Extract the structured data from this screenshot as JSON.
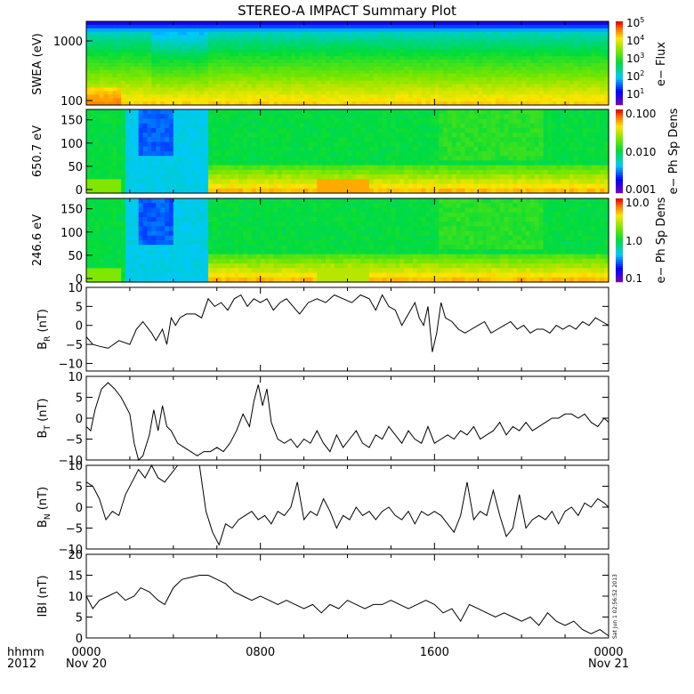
{
  "title": "STEREO-A IMPACT Summary Plot",
  "stamp": "Sat Jun 1 02:56:52 2013",
  "colors": {
    "line": "#000000",
    "frame": "#000000"
  },
  "x_axis": {
    "left_labels": [
      "hhmm",
      "2012"
    ],
    "ticks": [
      {
        "t": 0,
        "label": "0000",
        "sub": "Nov 20"
      },
      {
        "t": 8,
        "label": "0800",
        "sub": ""
      },
      {
        "t": 16,
        "label": "1600",
        "sub": ""
      },
      {
        "t": 24,
        "label": "0000",
        "sub": "Nov 21"
      }
    ],
    "range_hours": [
      0,
      24
    ]
  },
  "panels": {
    "swea": {
      "ylabel": "SWEA (eV)",
      "yticks": [
        "1000",
        "100"
      ],
      "colorbar_label": "e− Flux",
      "colorbar_ticks": [
        {
          "base": "10",
          "exp": "5"
        },
        {
          "base": "10",
          "exp": "4"
        },
        {
          "base": "10",
          "exp": "3"
        },
        {
          "base": "10",
          "exp": "2"
        },
        {
          "base": "10",
          "exp": "1"
        }
      ]
    },
    "pad1": {
      "ylabel": "650.7 eV",
      "yticks": [
        "150",
        "100",
        "50",
        "0"
      ],
      "colorbar_label": "e− Ph Sp Dens",
      "colorbar_ticks": [
        "0.100",
        "0.010",
        "0.001"
      ]
    },
    "pad2": {
      "ylabel": "246.6 eV",
      "yticks": [
        "150",
        "100",
        "50",
        "0"
      ],
      "colorbar_label": "e− Ph Sp Dens",
      "colorbar_ticks": [
        "10.0",
        "1.0",
        "0.1"
      ]
    },
    "br": {
      "ylabel_main": "B",
      "ylabel_sub": "R",
      "ylabel_unit": " (nT)",
      "yticks": [
        "10",
        "5",
        "0",
        "−5",
        "−10"
      ]
    },
    "bt": {
      "ylabel_main": "B",
      "ylabel_sub": "T",
      "ylabel_unit": " (nT)",
      "yticks": [
        "10",
        "5",
        "0",
        "−5",
        "−10"
      ]
    },
    "bn": {
      "ylabel_main": "B",
      "ylabel_sub": "N",
      "ylabel_unit": " (nT)",
      "yticks": [
        "10",
        "5",
        "0",
        "−5",
        "−10"
      ]
    },
    "bmag": {
      "ylabel": "IBI (nT)",
      "yticks": [
        "20",
        "15",
        "10",
        "5",
        "0"
      ]
    }
  },
  "chart_data": [
    {
      "type": "heatmap",
      "name": "SWEA",
      "ylabel": "SWEA (eV)",
      "colorbar": "e− Flux",
      "colorbar_range": [
        10,
        100000
      ],
      "yscale": "log",
      "ylim": [
        90,
        2000
      ]
    },
    {
      "type": "heatmap",
      "name": "650.7 eV",
      "ylabel": "650.7 eV",
      "colorbar": "e− Ph Sp Dens",
      "colorbar_range": [
        0.001,
        0.1
      ],
      "ylim": [
        0,
        180
      ]
    },
    {
      "type": "heatmap",
      "name": "246.6 eV",
      "ylabel": "246.6 eV",
      "colorbar": "e− Ph Sp Dens",
      "colorbar_range": [
        0.1,
        10
      ],
      "ylim": [
        0,
        180
      ]
    },
    {
      "type": "line",
      "ylabel": "BR (nT)",
      "ylim": [
        -12,
        10
      ],
      "x": [
        0,
        0.3,
        0.6,
        1,
        1.5,
        2,
        2.3,
        2.6,
        3,
        3.2,
        3.5,
        3.7,
        3.9,
        4.1,
        4.3,
        4.6,
        5,
        5.3,
        5.6,
        5.9,
        6.2,
        6.5,
        6.8,
        7.1,
        7.4,
        7.7,
        8,
        8.3,
        8.6,
        8.9,
        9.2,
        9.5,
        9.8,
        10.2,
        10.6,
        11,
        11.4,
        11.8,
        12.2,
        12.6,
        13,
        13.3,
        13.6,
        13.9,
        14.2,
        14.5,
        14.8,
        15.1,
        15.3,
        15.5,
        15.7,
        15.9,
        16.1,
        16.3,
        16.5,
        16.8,
        17.1,
        17.4,
        17.7,
        18,
        18.3,
        18.6,
        18.9,
        19.2,
        19.5,
        19.8,
        20.1,
        20.4,
        20.7,
        21,
        21.3,
        21.6,
        21.9,
        22.2,
        22.5,
        22.8,
        23.1,
        23.4,
        23.7,
        24
      ],
      "y": [
        -3,
        -5,
        -5.5,
        -6,
        -4,
        -5,
        -1,
        1,
        -2,
        -4,
        -1,
        -5,
        2,
        0,
        2,
        3,
        3,
        2,
        7,
        5,
        6,
        4,
        7,
        8,
        5,
        7,
        6,
        7,
        4,
        6,
        7,
        5,
        3,
        6,
        7,
        6,
        8,
        7,
        6,
        8,
        7,
        4,
        8,
        5,
        4,
        0,
        3,
        6,
        2,
        0,
        5,
        -7,
        -2,
        6,
        2,
        1,
        -1,
        -2,
        -1,
        0,
        1,
        -2,
        -1,
        0,
        1,
        -1,
        0,
        -2,
        -1,
        -1,
        -2,
        0,
        -1,
        0,
        -1,
        1,
        0,
        2,
        1,
        0
      ]
    },
    {
      "type": "line",
      "ylabel": "BT (nT)",
      "ylim": [
        -10,
        10
      ],
      "x": [
        0,
        0.2,
        0.4,
        0.7,
        1,
        1.3,
        1.6,
        2,
        2.2,
        2.4,
        2.6,
        2.9,
        3.1,
        3.3,
        3.5,
        3.7,
        3.9,
        4.2,
        4.5,
        4.8,
        5.1,
        5.4,
        5.7,
        6,
        6.3,
        6.6,
        6.9,
        7.2,
        7.5,
        7.7,
        7.9,
        8.1,
        8.3,
        8.5,
        8.8,
        9.1,
        9.4,
        9.7,
        10,
        10.3,
        10.6,
        10.9,
        11.2,
        11.5,
        11.8,
        12.1,
        12.4,
        12.7,
        13,
        13.3,
        13.6,
        13.9,
        14.2,
        14.5,
        14.8,
        15.1,
        15.4,
        15.7,
        16,
        16.3,
        16.6,
        16.9,
        17.2,
        17.5,
        17.8,
        18.1,
        18.4,
        18.7,
        19,
        19.3,
        19.6,
        19.9,
        20.2,
        20.5,
        20.8,
        21.1,
        21.4,
        21.7,
        22,
        22.3,
        22.6,
        22.9,
        23.2,
        23.5,
        23.8,
        24
      ],
      "y": [
        -2,
        -3,
        2,
        7,
        8.5,
        7,
        5,
        1,
        -6,
        -10,
        -9,
        -4,
        2,
        -3,
        3,
        -2,
        -3,
        -6,
        -7,
        -8,
        -9,
        -8,
        -8,
        -7,
        -8,
        -6,
        -3,
        1,
        -2,
        4,
        8,
        3,
        7,
        -1,
        -5,
        -6,
        -5,
        -7,
        -5,
        -6,
        -3,
        -6,
        -8,
        -4,
        -7,
        -5,
        -3,
        -6,
        -7,
        -4,
        -5,
        -2,
        -4,
        -6,
        -3,
        -5,
        -6,
        -2,
        -6,
        -5,
        -4,
        -5,
        -3,
        -4,
        -2,
        -5,
        -4,
        -3,
        -1,
        -4,
        -2,
        -3,
        -1,
        -3,
        -2,
        -1,
        0,
        0,
        1,
        1,
        0,
        1,
        -1,
        -2,
        0,
        -1
      ]
    },
    {
      "type": "line",
      "ylabel": "BN (nT)",
      "ylim": [
        -10,
        10
      ],
      "x": [
        0,
        0.3,
        0.6,
        0.9,
        1.2,
        1.5,
        1.8,
        2.1,
        2.4,
        2.7,
        3,
        3.3,
        3.6,
        3.9,
        4.2,
        5.2,
        5.5,
        5.8,
        6.1,
        6.4,
        6.7,
        7,
        7.3,
        7.6,
        7.9,
        8.2,
        8.5,
        8.8,
        9.1,
        9.4,
        9.7,
        10,
        10.3,
        10.6,
        10.9,
        11.2,
        11.5,
        11.8,
        12.1,
        12.4,
        12.7,
        13,
        13.3,
        13.6,
        13.9,
        14.2,
        14.5,
        14.8,
        15.1,
        15.4,
        15.7,
        16,
        16.3,
        16.6,
        16.9,
        17.2,
        17.5,
        17.8,
        18.1,
        18.4,
        18.7,
        19,
        19.3,
        19.6,
        19.9,
        20.2,
        20.5,
        20.8,
        21.1,
        21.4,
        21.7,
        22,
        22.3,
        22.6,
        22.9,
        23.2,
        23.5,
        23.8,
        24
      ],
      "y": [
        6,
        5,
        2,
        -3,
        -1,
        -2,
        3,
        6,
        9,
        7,
        10,
        7,
        6,
        8,
        10,
        10,
        -1,
        -6,
        -9,
        -4,
        -5,
        -3,
        -2,
        -1,
        -3,
        -2,
        -4,
        -1,
        -2,
        0,
        6,
        -3,
        -1,
        -2,
        2,
        -1,
        -5,
        -2,
        -3,
        0,
        -2,
        -1,
        -3,
        -1,
        0,
        -2,
        -3,
        -1,
        -4,
        -1,
        -2,
        -1,
        -2,
        -4,
        -6,
        -2,
        6,
        -3,
        -1,
        -2,
        4,
        -2,
        -7,
        -5,
        3,
        -5,
        -3,
        -2,
        -3,
        -1,
        -4,
        -1,
        0,
        -2,
        1,
        0,
        2,
        1,
        0
      ]
    },
    {
      "type": "line",
      "ylabel": "IBI (nT)",
      "ylim": [
        0,
        20
      ],
      "x": [
        0,
        0.3,
        0.6,
        1,
        1.4,
        1.8,
        2.2,
        2.5,
        2.9,
        3.3,
        3.6,
        4,
        4.4,
        4.8,
        5.2,
        5.6,
        6,
        6.4,
        6.8,
        7.2,
        7.6,
        8,
        8.4,
        8.8,
        9.2,
        9.6,
        10,
        10.4,
        10.8,
        11.2,
        11.6,
        12,
        12.4,
        12.8,
        13.2,
        13.6,
        14,
        14.4,
        14.8,
        15.2,
        15.6,
        16,
        16.4,
        16.8,
        17.2,
        17.6,
        18,
        18.4,
        18.8,
        19.2,
        19.6,
        20,
        20.4,
        20.8,
        21.2,
        21.6,
        22,
        22.4,
        22.8,
        23.2,
        23.6,
        24
      ],
      "y": [
        10,
        7,
        9,
        10,
        11,
        9,
        10,
        12,
        11,
        9,
        8,
        12,
        14,
        14.5,
        15,
        15,
        14,
        13,
        11,
        10,
        9,
        10,
        9,
        8,
        9,
        8,
        7,
        8,
        6,
        8,
        7,
        9,
        8,
        7,
        8,
        8,
        9,
        8,
        7,
        8,
        9,
        8,
        6,
        7,
        4,
        8,
        7,
        6,
        5,
        6,
        5,
        4,
        5,
        3,
        6,
        4,
        3,
        4,
        2,
        1,
        2,
        0.5
      ]
    }
  ]
}
